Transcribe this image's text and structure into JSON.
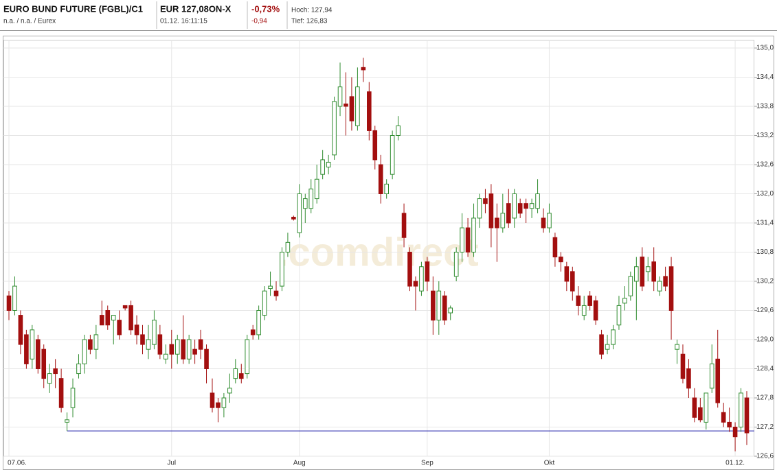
{
  "header": {
    "title": "EURO BUND FUTURE (FGBL)/C1",
    "subtitle": "n.a. / n.a. / Eurex",
    "price": "EUR 127,08ON-X",
    "time": "01.12. 16:11:15",
    "change_pct": "-0,73%",
    "change_abs": "-0,94",
    "high": "Hoch: 127,94",
    "low": "Tief: 126,83"
  },
  "chart_data": {
    "type": "candlestick",
    "watermark": ".comdirect",
    "up_color": "#2e8b2e",
    "down_color": "#a30f0f",
    "grid": true,
    "categories": [
      "07.06.",
      null,
      null,
      null,
      null,
      null,
      null,
      null,
      null,
      null,
      null,
      null,
      null,
      null,
      null,
      null,
      null,
      null,
      null,
      null,
      null,
      null,
      null,
      null,
      null,
      null,
      null,
      null,
      "Jul",
      null,
      null,
      null,
      null,
      null,
      null,
      null,
      null,
      null,
      null,
      null,
      null,
      null,
      null,
      null,
      null,
      null,
      null,
      null,
      null,
      null,
      "Aug",
      null,
      null,
      null,
      null,
      null,
      null,
      null,
      null,
      null,
      null,
      null,
      null,
      null,
      null,
      null,
      null,
      null,
      null,
      null,
      null,
      null,
      "Sep",
      null,
      null,
      null,
      null,
      null,
      null,
      null,
      null,
      null,
      null,
      null,
      null,
      null,
      null,
      null,
      null,
      null,
      null,
      null,
      null,
      "Okt",
      null,
      null,
      null,
      null,
      null,
      null,
      null,
      null,
      null,
      null,
      null,
      null,
      null,
      null,
      null,
      null,
      null,
      null,
      null,
      null,
      null,
      null,
      null,
      null,
      null,
      null,
      null,
      null,
      null,
      null,
      null,
      "01.12.",
      null,
      null
    ],
    "open": [
      129.9,
      129.6,
      129.5,
      129.1,
      128.6,
      129.0,
      128.8,
      128.1,
      128.4,
      128.2,
      127.3,
      127.6,
      128.3,
      128.5,
      129.0,
      128.8,
      129.5,
      129.6,
      129.4,
      129.4,
      129.7,
      129.7,
      129.3,
      129.1,
      128.8,
      128.9,
      129.1,
      128.6,
      128.9,
      128.7,
      129.0,
      128.6,
      128.8,
      129.0,
      128.8,
      127.9,
      127.7,
      127.6,
      127.9,
      128.2,
      128.3,
      128.3,
      129.2,
      129.1,
      129.5,
      130.05,
      130.0,
      130.1,
      130.8,
      131.52,
      131.2,
      131.7,
      131.7,
      131.9,
      132.4,
      132.55,
      132.8,
      133.8,
      133.85,
      134.0,
      133.4,
      134.6,
      134.1,
      133.3,
      132.6,
      132.0,
      132.4,
      133.2,
      131.6,
      130.8,
      130.2,
      130.0,
      130.6,
      130.0,
      129.4,
      129.9,
      129.55,
      130.3,
      130.8,
      131.3,
      130.8,
      131.5,
      131.9,
      132.0,
      131.5,
      131.3,
      131.8,
      131.5,
      131.8,
      131.8,
      131.7,
      131.7,
      131.5,
      131.3,
      131.1,
      130.7,
      130.5,
      130.4,
      129.9,
      129.5,
      129.9,
      129.8,
      129.1,
      128.8,
      128.9,
      129.3,
      129.75,
      129.9,
      130.2,
      130.7,
      130.4,
      130.6,
      130.0,
      130.3,
      130.5,
      128.8,
      128.7,
      128.4,
      127.8,
      127.6,
      127.3,
      128.0,
      128.6,
      127.5,
      127.3,
      127.2,
      127.2,
      127.8
    ],
    "high": [
      130.0,
      130.3,
      129.6,
      129.2,
      129.3,
      129.1,
      128.9,
      128.5,
      128.6,
      128.4,
      127.5,
      128.2,
      128.7,
      129.1,
      129.1,
      129.3,
      129.8,
      129.7,
      129.5,
      129.6,
      129.7,
      129.8,
      129.5,
      129.3,
      129.3,
      129.6,
      129.3,
      128.9,
      129.2,
      129.1,
      129.5,
      129.1,
      129.0,
      129.2,
      128.9,
      128.2,
      127.8,
      127.9,
      128.3,
      128.6,
      128.5,
      129.1,
      129.3,
      129.7,
      130.1,
      130.4,
      130.2,
      130.9,
      131.2,
      131.55,
      132.2,
      132.0,
      132.3,
      132.6,
      132.9,
      132.8,
      134.0,
      134.7,
      134.5,
      134.4,
      134.6,
      134.8,
      134.3,
      133.4,
      132.8,
      132.3,
      133.3,
      133.6,
      131.8,
      130.9,
      130.3,
      130.6,
      130.7,
      130.3,
      130.2,
      130.0,
      129.7,
      130.9,
      131.6,
      131.5,
      131.8,
      132.0,
      132.1,
      132.2,
      131.8,
      132.0,
      132.1,
      132.1,
      131.9,
      131.9,
      131.9,
      132.3,
      131.7,
      131.8,
      131.2,
      130.8,
      130.6,
      130.5,
      130.1,
      129.9,
      130.0,
      129.9,
      129.2,
      129.1,
      129.3,
      129.9,
      130.1,
      130.4,
      130.7,
      130.9,
      130.7,
      130.9,
      130.3,
      130.5,
      130.7,
      129.0,
      128.9,
      128.6,
      128.0,
      127.8,
      127.9,
      128.9,
      129.2,
      127.7,
      127.6,
      127.3,
      128.0,
      127.94
    ],
    "low": [
      129.4,
      129.5,
      128.7,
      128.4,
      128.4,
      128.3,
      128.0,
      127.9,
      128.0,
      127.5,
      127.12,
      127.4,
      128.2,
      128.3,
      128.7,
      128.6,
      129.3,
      129.2,
      128.9,
      129.0,
      129.6,
      129.1,
      128.9,
      128.7,
      128.6,
      128.8,
      128.6,
      128.5,
      128.4,
      128.5,
      128.5,
      128.5,
      128.5,
      128.6,
      128.1,
      127.5,
      127.3,
      127.4,
      127.7,
      128.1,
      128.1,
      128.2,
      129.0,
      129.0,
      129.4,
      129.9,
      129.8,
      130.0,
      130.7,
      131.45,
      131.1,
      131.4,
      131.6,
      131.8,
      132.3,
      132.4,
      132.7,
      133.6,
      133.2,
      133.3,
      133.3,
      134.3,
      133.1,
      132.5,
      131.8,
      131.9,
      132.3,
      133.1,
      130.9,
      130.0,
      129.6,
      129.9,
      130.0,
      129.1,
      129.1,
      129.3,
      129.4,
      130.2,
      130.6,
      130.7,
      130.7,
      131.3,
      131.6,
      130.9,
      130.6,
      131.2,
      131.3,
      131.3,
      131.5,
      131.4,
      131.5,
      131.6,
      131.2,
      131.2,
      130.5,
      130.4,
      130.0,
      129.8,
      129.5,
      129.4,
      129.6,
      129.3,
      128.6,
      128.7,
      128.8,
      129.2,
      129.6,
      129.8,
      129.4,
      130.0,
      130.2,
      130.0,
      129.9,
      130.0,
      129.0,
      128.5,
      128.1,
      127.8,
      127.3,
      127.3,
      127.15,
      127.9,
      127.6,
      127.2,
      127.1,
      126.7,
      127.1,
      126.83
    ],
    "close": [
      129.6,
      130.1,
      128.9,
      128.5,
      129.2,
      128.4,
      128.2,
      128.3,
      128.3,
      127.6,
      127.35,
      128.0,
      128.5,
      129.0,
      128.8,
      129.1,
      129.3,
      129.3,
      129.5,
      129.1,
      129.65,
      129.2,
      129.1,
      128.9,
      129.0,
      129.4,
      128.7,
      128.7,
      128.7,
      129.0,
      128.6,
      129.0,
      128.7,
      128.8,
      128.4,
      127.6,
      127.6,
      127.8,
      128.0,
      128.4,
      128.2,
      129.0,
      129.1,
      129.6,
      130.0,
      130.1,
      129.9,
      130.8,
      131.0,
      131.48,
      132.0,
      131.9,
      132.1,
      132.3,
      132.7,
      132.65,
      133.9,
      134.2,
      133.8,
      133.5,
      134.2,
      134.55,
      133.3,
      132.7,
      132.0,
      132.2,
      133.2,
      133.4,
      131.1,
      130.1,
      130.1,
      130.5,
      130.2,
      129.4,
      130.0,
      129.4,
      129.65,
      130.8,
      131.3,
      130.8,
      131.5,
      131.9,
      131.8,
      131.3,
      131.3,
      131.6,
      131.4,
      132.0,
      131.6,
      131.7,
      131.8,
      132.0,
      131.3,
      131.6,
      130.7,
      130.6,
      130.2,
      130.0,
      129.7,
      129.7,
      129.7,
      129.4,
      128.7,
      128.9,
      129.2,
      129.7,
      129.85,
      130.3,
      130.5,
      130.1,
      130.5,
      130.2,
      130.2,
      130.1,
      129.6,
      128.9,
      128.2,
      128.0,
      127.4,
      127.35,
      127.9,
      128.5,
      127.7,
      127.3,
      127.2,
      127.0,
      127.9,
      127.08
    ],
    "support_line": {
      "value": 127.12,
      "from": 10,
      "color": "#1a1aa8"
    },
    "ylim": [
      126.6,
      135.0
    ],
    "yticks": [
      {
        "value": 126.6,
        "label": "126,6"
      },
      {
        "value": 127.2,
        "label": "127,2"
      },
      {
        "value": 127.8,
        "label": "127,8"
      },
      {
        "value": 128.4,
        "label": "128,4"
      },
      {
        "value": 129.0,
        "label": "129,0"
      },
      {
        "value": 129.6,
        "label": "129,6"
      },
      {
        "value": 130.2,
        "label": "130,2"
      },
      {
        "value": 130.8,
        "label": "130,8"
      },
      {
        "value": 131.4,
        "label": "131,4"
      },
      {
        "value": 132.0,
        "label": "132,0"
      },
      {
        "value": 132.6,
        "label": "132,6"
      },
      {
        "value": 133.2,
        "label": "133,2"
      },
      {
        "value": 133.8,
        "label": "133,8"
      },
      {
        "value": 134.4,
        "label": "134,4"
      },
      {
        "value": 135.0,
        "label": "135,0"
      }
    ]
  }
}
